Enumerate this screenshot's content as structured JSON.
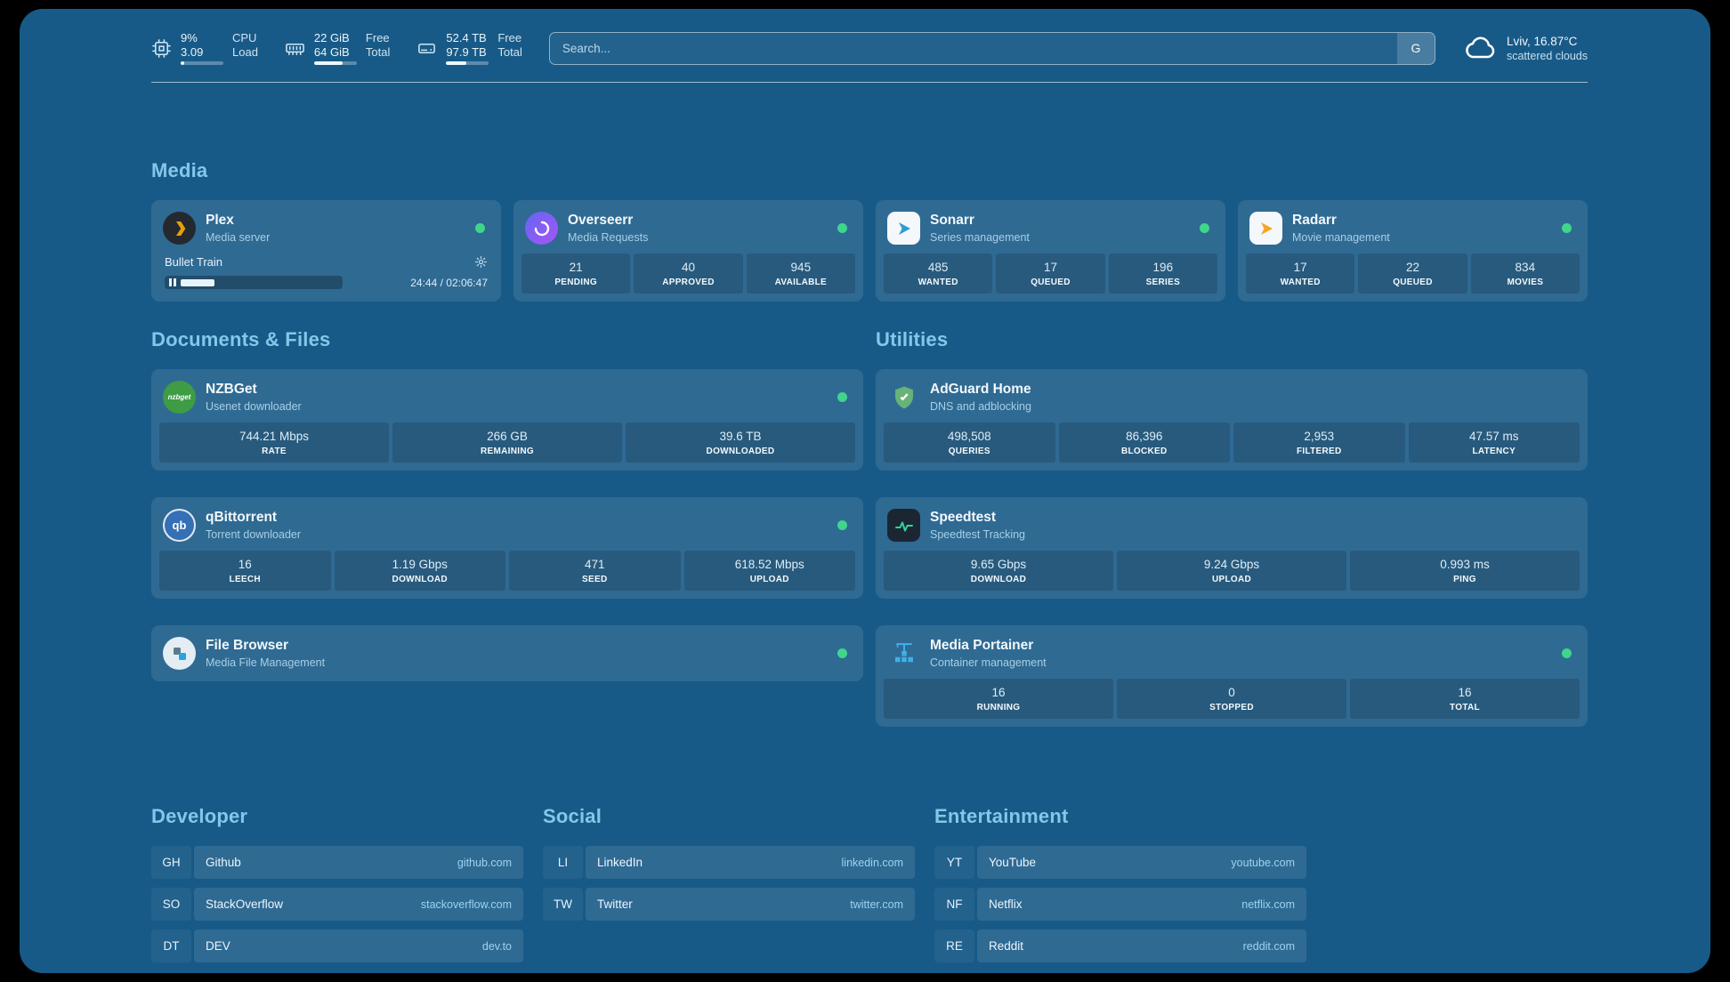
{
  "topbar": {
    "resources": [
      {
        "icon": "cpu-icon",
        "values": [
          "9%",
          "3.09"
        ],
        "labels": [
          "CPU",
          "Load"
        ],
        "percent": 9
      },
      {
        "icon": "memory-icon",
        "values": [
          "22 GiB",
          "64 GiB"
        ],
        "labels": [
          "Free",
          "Total"
        ],
        "percent": 66
      },
      {
        "icon": "disk-icon",
        "values": [
          "52.4 TB",
          "97.9 TB"
        ],
        "labels": [
          "Free",
          "Total"
        ],
        "percent": 47
      }
    ],
    "search": {
      "placeholder": "Search...",
      "provider_button": "G"
    },
    "weather": {
      "icon": "cloud-icon",
      "location": "Lviv, 16.87°C",
      "condition": "scattered clouds"
    }
  },
  "groups": {
    "media": {
      "title": "Media",
      "plex": {
        "icon": "plex-icon",
        "name": "Plex",
        "desc": "Media server",
        "online": true,
        "now_playing": "Bullet Train",
        "time": "24:44 / 02:06:47",
        "progress_percent": 20
      },
      "overseerr": {
        "icon": "overseerr-icon",
        "name": "Overseerr",
        "desc": "Media Requests",
        "online": true,
        "stats": [
          {
            "value": "21",
            "label": "PENDING"
          },
          {
            "value": "40",
            "label": "APPROVED"
          },
          {
            "value": "945",
            "label": "AVAILABLE"
          }
        ]
      },
      "sonarr": {
        "icon": "sonarr-icon",
        "name": "Sonarr",
        "desc": "Series management",
        "online": true,
        "stats": [
          {
            "value": "485",
            "label": "WANTED"
          },
          {
            "value": "17",
            "label": "QUEUED"
          },
          {
            "value": "196",
            "label": "SERIES"
          }
        ]
      },
      "radarr": {
        "icon": "radarr-icon",
        "name": "Radarr",
        "desc": "Movie management",
        "online": true,
        "stats": [
          {
            "value": "17",
            "label": "WANTED"
          },
          {
            "value": "22",
            "label": "QUEUED"
          },
          {
            "value": "834",
            "label": "MOVIES"
          }
        ]
      }
    },
    "documents": {
      "title": "Documents & Files",
      "nzbget": {
        "icon": "nzbget-icon",
        "icon_text": "nzbget",
        "name": "NZBGet",
        "desc": "Usenet downloader",
        "online": true,
        "stats": [
          {
            "value": "744.21 Mbps",
            "label": "RATE"
          },
          {
            "value": "266 GB",
            "label": "REMAINING"
          },
          {
            "value": "39.6 TB",
            "label": "DOWNLOADED"
          }
        ]
      },
      "qbittorrent": {
        "icon": "qbittorrent-icon",
        "icon_text": "qb",
        "name": "qBittorrent",
        "desc": "Torrent downloader",
        "online": true,
        "stats": [
          {
            "value": "16",
            "label": "LEECH"
          },
          {
            "value": "1.19 Gbps",
            "label": "DOWNLOAD"
          },
          {
            "value": "471",
            "label": "SEED"
          },
          {
            "value": "618.52 Mbps",
            "label": "UPLOAD"
          }
        ]
      },
      "filebrowser": {
        "icon": "filebrowser-icon",
        "name": "File Browser",
        "desc": "Media File Management",
        "online": true
      }
    },
    "utilities": {
      "title": "Utilities",
      "adguard": {
        "icon": "adguard-shield-icon",
        "name": "AdGuard Home",
        "desc": "DNS and adblocking",
        "stats": [
          {
            "value": "498,508",
            "label": "QUERIES"
          },
          {
            "value": "86,396",
            "label": "BLOCKED"
          },
          {
            "value": "2,953",
            "label": "FILTERED"
          },
          {
            "value": "47.57 ms",
            "label": "LATENCY"
          }
        ]
      },
      "speedtest": {
        "icon": "speedtest-pulse-icon",
        "name": "Speedtest",
        "desc": "Speedtest Tracking",
        "stats": [
          {
            "value": "9.65 Gbps",
            "label": "DOWNLOAD"
          },
          {
            "value": "9.24 Gbps",
            "label": "UPLOAD"
          },
          {
            "value": "0.993 ms",
            "label": "PING"
          }
        ]
      },
      "portainer": {
        "icon": "portainer-crane-icon",
        "name": "Media Portainer",
        "desc": "Container management",
        "online": true,
        "stats": [
          {
            "value": "16",
            "label": "RUNNING"
          },
          {
            "value": "0",
            "label": "STOPPED"
          },
          {
            "value": "16",
            "label": "TOTAL"
          }
        ]
      }
    }
  },
  "bookmarks": {
    "developer": {
      "title": "Developer",
      "items": [
        {
          "abbr": "GH",
          "name": "Github",
          "url": "github.com"
        },
        {
          "abbr": "SO",
          "name": "StackOverflow",
          "url": "stackoverflow.com"
        },
        {
          "abbr": "DT",
          "name": "DEV",
          "url": "dev.to"
        }
      ]
    },
    "social": {
      "title": "Social",
      "items": [
        {
          "abbr": "LI",
          "name": "LinkedIn",
          "url": "linkedin.com"
        },
        {
          "abbr": "TW",
          "name": "Twitter",
          "url": "twitter.com"
        }
      ]
    },
    "entertainment": {
      "title": "Entertainment",
      "items": [
        {
          "abbr": "YT",
          "name": "YouTube",
          "url": "youtube.com"
        },
        {
          "abbr": "NF",
          "name": "Netflix",
          "url": "netflix.com"
        },
        {
          "abbr": "RE",
          "name": "Reddit",
          "url": "reddit.com"
        }
      ]
    }
  }
}
